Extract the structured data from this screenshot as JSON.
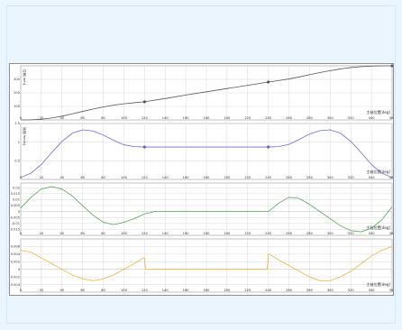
{
  "chart_data": [
    {
      "type": "line",
      "name": "displacement",
      "xlabel": "主轴位置[deg]",
      "ylabel": "位移[mm]",
      "xlim": [
        0,
        360
      ],
      "x_ticks": [
        0,
        20,
        40,
        60,
        80,
        100,
        120,
        140,
        160,
        180,
        200,
        220,
        240,
        260,
        280,
        300,
        320,
        340,
        360
      ],
      "ylim": [
        0,
        400
      ],
      "y_ticks": [
        100,
        200,
        300
      ],
      "color": "#555555",
      "x": [
        0,
        10,
        20,
        30,
        40,
        50,
        60,
        70,
        80,
        90,
        100,
        110,
        120,
        140,
        160,
        180,
        200,
        220,
        240,
        250,
        260,
        270,
        280,
        290,
        300,
        310,
        320,
        330,
        340,
        350,
        360
      ],
      "y": [
        0,
        1,
        5,
        14,
        28,
        45,
        63,
        80,
        96,
        109,
        119,
        127,
        134,
        158,
        184,
        208,
        232,
        256,
        280,
        291,
        303,
        318,
        334,
        350,
        364,
        377,
        387,
        394,
        398,
        400,
        400
      ],
      "markers": [
        [
          120,
          134
        ],
        [
          240,
          280
        ],
        [
          360,
          400
        ]
      ]
    },
    {
      "type": "line",
      "name": "velocity",
      "xlabel": "主轴位置[deg]",
      "ylabel": "速度[mm/s]",
      "xlim": [
        0,
        360
      ],
      "x_ticks": [
        0,
        20,
        40,
        60,
        80,
        100,
        120,
        140,
        160,
        180,
        200,
        220,
        240,
        260,
        280,
        300,
        320,
        340,
        360
      ],
      "ylim": [
        0,
        1.5
      ],
      "y_ticks": [
        0.5,
        1.0,
        1.5
      ],
      "color": "#6b6bd6",
      "x": [
        0,
        10,
        20,
        30,
        40,
        50,
        60,
        70,
        80,
        90,
        100,
        110,
        120,
        140,
        160,
        180,
        200,
        220,
        240,
        250,
        260,
        270,
        280,
        290,
        300,
        310,
        320,
        330,
        340,
        350,
        360
      ],
      "y": [
        0.05,
        0.17,
        0.4,
        0.72,
        1.02,
        1.24,
        1.33,
        1.3,
        1.19,
        1.05,
        0.93,
        0.88,
        0.87,
        0.87,
        0.87,
        0.87,
        0.87,
        0.87,
        0.87,
        0.88,
        0.94,
        1.07,
        1.22,
        1.31,
        1.33,
        1.24,
        1.02,
        0.72,
        0.4,
        0.17,
        0.05
      ],
      "markers": [
        [
          120,
          0.87
        ],
        [
          240,
          0.87
        ]
      ]
    },
    {
      "type": "line",
      "name": "acceleration",
      "xlabel": "主轴位置[deg]",
      "xlim": [
        0,
        360
      ],
      "x_ticks": [
        0,
        20,
        40,
        60,
        80,
        100,
        120,
        140,
        160,
        180,
        200,
        220,
        240,
        260,
        280,
        300,
        320,
        340,
        360
      ],
      "ylim": [
        -0.02,
        0.024
      ],
      "y_ticks": [
        0.02,
        0.015,
        0.01,
        0.005,
        0.0,
        -0.005,
        -0.01,
        -0.015
      ],
      "y_tick_labels": [
        "0.02",
        "0.015",
        "0.01",
        "0.005",
        "0",
        "-0.005",
        "-0.01",
        "-0.015"
      ],
      "color": "#5aa55a",
      "x": [
        0,
        10,
        20,
        30,
        40,
        50,
        60,
        70,
        80,
        90,
        100,
        110,
        120,
        130,
        140,
        160,
        180,
        200,
        220,
        240,
        250,
        260,
        270,
        280,
        290,
        300,
        310,
        320,
        330,
        340,
        350,
        360
      ],
      "y": [
        0.003,
        0.012,
        0.019,
        0.021,
        0.019,
        0.013,
        0.005,
        -0.003,
        -0.009,
        -0.011,
        -0.009,
        -0.006,
        -0.002,
        0.0,
        0.0,
        0.0,
        0.0,
        0.0,
        0.0,
        0.0,
        0.007,
        0.012,
        0.011,
        0.006,
        0.0,
        -0.006,
        -0.012,
        -0.016,
        -0.017,
        -0.014,
        -0.007,
        0.004
      ]
    },
    {
      "type": "line",
      "name": "jerk",
      "xlabel": "主轴位置[deg]",
      "xlim": [
        0,
        360
      ],
      "x_ticks": [
        0,
        20,
        40,
        60,
        80,
        100,
        120,
        140,
        160,
        180,
        200,
        220,
        240,
        260,
        280,
        300,
        320,
        340,
        360
      ],
      "ylim": [
        -0.006,
        0.008
      ],
      "y_ticks": [
        0.006,
        0.004,
        0.002,
        0.0,
        -0.002,
        -0.004
      ],
      "y_tick_labels": [
        "0.006",
        "0.004",
        "0.002",
        "0",
        "-0.002",
        "-0.004"
      ],
      "color": "#f0b040",
      "x": [
        0,
        10,
        20,
        30,
        40,
        50,
        60,
        70,
        80,
        90,
        100,
        110,
        119,
        120,
        121,
        130,
        160,
        200,
        230,
        239,
        240,
        241,
        250,
        260,
        270,
        280,
        290,
        300,
        310,
        320,
        330,
        340,
        350,
        360
      ],
      "y": [
        0.005,
        0.0045,
        0.003,
        0.0015,
        0.0,
        -0.0015,
        -0.0025,
        -0.003,
        -0.0025,
        -0.0015,
        0.0,
        0.0015,
        0.003,
        0.003,
        0.0,
        0.0,
        0.0,
        0.0,
        0.0,
        0.0,
        0.004,
        0.004,
        0.0025,
        0.001,
        -0.0005,
        -0.002,
        -0.003,
        -0.003,
        -0.002,
        -0.0005,
        0.0015,
        0.0035,
        0.005,
        0.006
      ]
    }
  ]
}
